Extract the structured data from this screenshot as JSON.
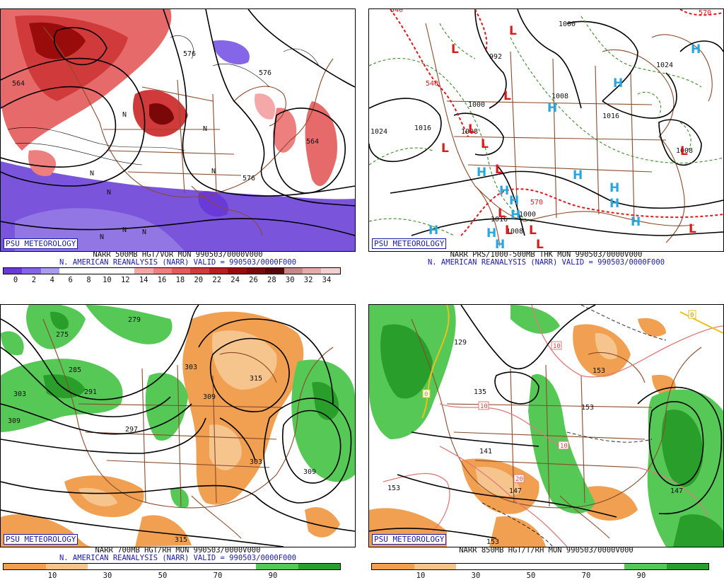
{
  "panels": [
    {
      "id": "p1",
      "badge": "PSU METEOROLOGY",
      "caption1": "NARR 500MB HGT/VOR MON 990503/0000V000",
      "caption2": "N. AMERICAN REANALYSIS (NARR) VALID = 990503/0000F000",
      "colorbar": {
        "labels": [
          "0",
          "2",
          "4",
          "6",
          "8",
          "10",
          "12",
          "14",
          "16",
          "18",
          "20",
          "22",
          "24",
          "26",
          "28",
          "30",
          "32",
          "34"
        ],
        "colors": [
          "#6a3ad8",
          "#8466e6",
          "#a99cf0",
          "#ffffff",
          "#ffffff",
          "#ffffff",
          "#ffffff",
          "#f4a8a8",
          "#ee7f7f",
          "#e25c5c",
          "#d03a3a",
          "#b81e1e",
          "#9a0c0c",
          "#7a0808",
          "#5a0404",
          "#c88888",
          "#e6aaaa",
          "#f3cfcf"
        ]
      },
      "contour_labels": [
        "564",
        "576",
        "576",
        "564",
        "576",
        "N",
        "N",
        "N",
        "N",
        "N",
        "N",
        "N",
        "N"
      ]
    },
    {
      "id": "p2",
      "badge": "PSU METEOROLOGY",
      "caption1": "NARR PRS/1000-500MB THK MON 990503/0000V000",
      "caption2": "N. AMERICAN REANALYSIS (NARR) VALID = 990503/0000F000",
      "contour_labels": [
        "1000",
        "992",
        "1000",
        "1008",
        "1016",
        "1024",
        "1024",
        "1008",
        "1016",
        "1008",
        "1008",
        "1000",
        "1016",
        "540",
        "570",
        "570",
        "540"
      ],
      "highs": [
        "H",
        "H",
        "H",
        "H",
        "H",
        "H",
        "H",
        "H",
        "H",
        "H",
        "H",
        "H",
        "H",
        "H"
      ],
      "lows": [
        "L",
        "L",
        "L",
        "L",
        "L",
        "L",
        "L",
        "L",
        "L",
        "L",
        "L",
        "L",
        "L"
      ]
    },
    {
      "id": "p3",
      "badge": "PSU METEOROLOGY",
      "caption1": "NARR 700MB HGT/RH MON 990503/0000V000",
      "caption2": "N. AMERICAN REANALYSIS (NARR) VALID = 990503/0000F000",
      "colorbar": {
        "labels": [
          "10",
          "30",
          "50",
          "70",
          "90"
        ],
        "colors": [
          "#f0a050",
          "#f6c58e",
          "#ffffff",
          "#ffffff",
          "#ffffff",
          "#ffffff",
          "#56c856",
          "#2a9e2a"
        ]
      },
      "contour_labels": [
        "279",
        "275",
        "285",
        "291",
        "303",
        "309",
        "297",
        "303",
        "315",
        "309",
        "309",
        "303",
        "315",
        "315"
      ]
    },
    {
      "id": "p4",
      "badge": "PSU METEOROLOGY",
      "caption1": "NARR 850MB HGT/T/RH MON 990503/0000V000",
      "caption2": "N. AMERICAN REANALYSIS (NARR) VALID = 990503/0000F000",
      "colorbar": {
        "labels": [
          "10",
          "30",
          "50",
          "70",
          "90"
        ],
        "colors": [
          "#f0a050",
          "#f6c58e",
          "#ffffff",
          "#ffffff",
          "#ffffff",
          "#ffffff",
          "#56c856",
          "#2a9e2a"
        ]
      },
      "contour_labels": [
        "129",
        "135",
        "141",
        "147",
        "153",
        "153",
        "153",
        "147",
        "153"
      ],
      "temp_labels": [
        "10",
        "10",
        "10",
        "20",
        "0",
        "0"
      ]
    }
  ]
}
